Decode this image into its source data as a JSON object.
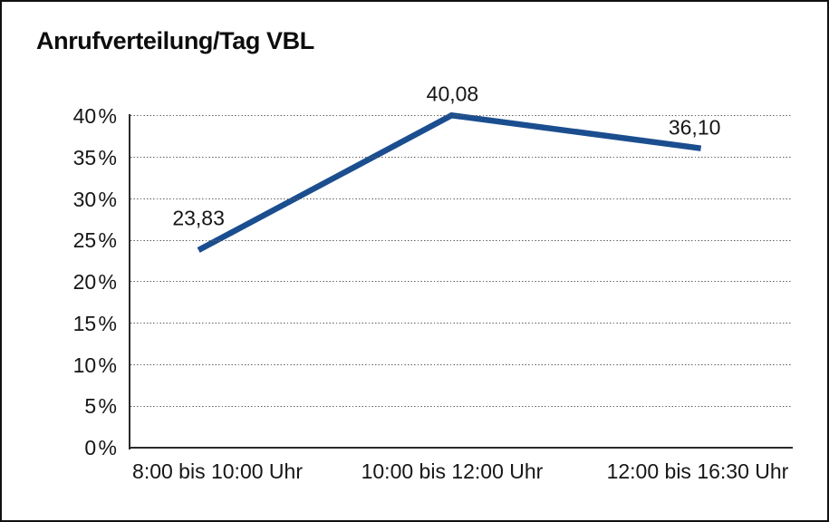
{
  "chart_data": {
    "type": "line",
    "title": "Anrufverteilung/Tag VBL",
    "categories": [
      "8:00 bis 10:00 Uhr",
      "10:00 bis 12:00 Uhr",
      "12:00 bis 16:30 Uhr"
    ],
    "values": [
      23.83,
      40.08,
      36.1
    ],
    "point_labels": [
      "23,83",
      "40,08",
      "36,10"
    ],
    "ylim": [
      0,
      40
    ],
    "ytick_step": 5,
    "ytick_labels": [
      "0 %",
      "5 %",
      "10 %",
      "15 %",
      "20 %",
      "25 %",
      "30 %",
      "35 %",
      "40 %"
    ],
    "xlabel": "",
    "ylabel": "",
    "grid": "horizontal-dotted",
    "legend": "none",
    "line_color": "#1b4e8f",
    "text_color": "#161616"
  }
}
